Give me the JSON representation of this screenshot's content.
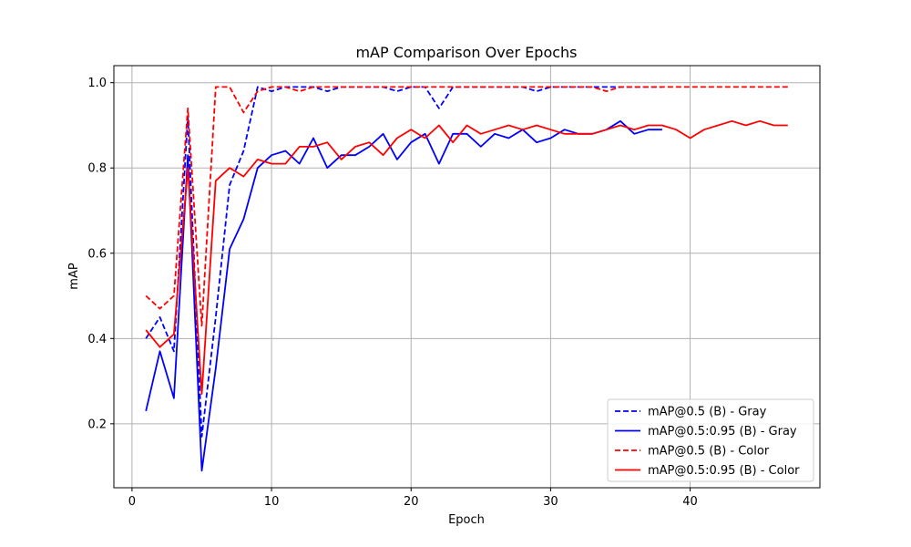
{
  "chart_data": {
    "type": "line",
    "title": "mAP Comparison Over Epochs",
    "xlabel": "Epoch",
    "ylabel": "mAP",
    "xlim": [
      -1.3,
      49.3
    ],
    "ylim": [
      0.05,
      1.04
    ],
    "xticks": [
      0,
      10,
      20,
      30,
      40
    ],
    "yticks": [
      0.2,
      0.4,
      0.6,
      0.8,
      1.0
    ],
    "xtick_labels": [
      "0",
      "10",
      "20",
      "30",
      "40"
    ],
    "ytick_labels": [
      "0.2",
      "0.4",
      "0.6",
      "0.8",
      "1.0"
    ],
    "grid": true,
    "legend_position": "lower-right",
    "series": [
      {
        "name": "mAP@0.5 (B) - Gray",
        "color": "#0000ff",
        "style": "dashed",
        "x": [
          1,
          2,
          3,
          4,
          5,
          6,
          7,
          8,
          9,
          10,
          11,
          12,
          13,
          14,
          15,
          16,
          17,
          18,
          19,
          20,
          21,
          22,
          23,
          24,
          25,
          26,
          27,
          28,
          29,
          30,
          31,
          32,
          33,
          34,
          35,
          36,
          37,
          38
        ],
        "values": [
          0.4,
          0.45,
          0.37,
          0.92,
          0.17,
          0.45,
          0.76,
          0.84,
          0.99,
          0.98,
          0.99,
          0.99,
          0.99,
          0.98,
          0.99,
          0.99,
          0.99,
          0.99,
          0.98,
          0.99,
          0.99,
          0.94,
          0.99,
          0.99,
          0.99,
          0.99,
          0.99,
          0.99,
          0.98,
          0.99,
          0.99,
          0.99,
          0.99,
          0.99,
          0.99,
          0.99,
          0.99,
          0.99
        ]
      },
      {
        "name": "mAP@0.5:0.95 (B) - Gray",
        "color": "#0000ff",
        "style": "solid",
        "x": [
          1,
          2,
          3,
          4,
          5,
          6,
          7,
          8,
          9,
          10,
          11,
          12,
          13,
          14,
          15,
          16,
          17,
          18,
          19,
          20,
          21,
          22,
          23,
          24,
          25,
          26,
          27,
          28,
          29,
          30,
          31,
          32,
          33,
          34,
          35,
          36,
          37,
          38
        ],
        "values": [
          0.23,
          0.37,
          0.26,
          0.83,
          0.09,
          0.33,
          0.61,
          0.68,
          0.8,
          0.83,
          0.84,
          0.81,
          0.87,
          0.8,
          0.83,
          0.83,
          0.85,
          0.88,
          0.82,
          0.86,
          0.88,
          0.81,
          0.88,
          0.88,
          0.85,
          0.88,
          0.87,
          0.89,
          0.86,
          0.87,
          0.89,
          0.88,
          0.88,
          0.89,
          0.91,
          0.88,
          0.89,
          0.89
        ]
      },
      {
        "name": "mAP@0.5 (B) - Color",
        "color": "#ff0000",
        "style": "dashed",
        "x": [
          1,
          2,
          3,
          4,
          5,
          6,
          7,
          8,
          9,
          10,
          11,
          12,
          13,
          14,
          15,
          16,
          17,
          18,
          19,
          20,
          21,
          22,
          23,
          24,
          25,
          26,
          27,
          28,
          29,
          30,
          31,
          32,
          33,
          34,
          35,
          36,
          37,
          38,
          39,
          40,
          41,
          42,
          43,
          44,
          45,
          46,
          47
        ],
        "values": [
          0.5,
          0.47,
          0.5,
          0.94,
          0.43,
          0.99,
          0.99,
          0.93,
          0.98,
          0.99,
          0.99,
          0.98,
          0.99,
          0.99,
          0.99,
          0.99,
          0.99,
          0.99,
          0.99,
          0.99,
          0.99,
          0.99,
          0.99,
          0.99,
          0.99,
          0.99,
          0.99,
          0.99,
          0.99,
          0.99,
          0.99,
          0.99,
          0.99,
          0.98,
          0.99,
          0.99,
          0.99,
          0.99,
          0.99,
          0.99,
          0.99,
          0.99,
          0.99,
          0.99,
          0.99,
          0.99,
          0.99
        ]
      },
      {
        "name": "mAP@0.5:0.95 (B) - Color",
        "color": "#ff0000",
        "style": "solid",
        "x": [
          1,
          2,
          3,
          4,
          5,
          6,
          7,
          8,
          9,
          10,
          11,
          12,
          13,
          14,
          15,
          16,
          17,
          18,
          19,
          20,
          21,
          22,
          23,
          24,
          25,
          26,
          27,
          28,
          29,
          30,
          31,
          32,
          33,
          34,
          35,
          36,
          37,
          38,
          39,
          40,
          41,
          42,
          43,
          44,
          45,
          46,
          47
        ],
        "values": [
          0.42,
          0.38,
          0.41,
          0.8,
          0.27,
          0.77,
          0.8,
          0.78,
          0.82,
          0.81,
          0.81,
          0.85,
          0.85,
          0.86,
          0.82,
          0.85,
          0.86,
          0.83,
          0.87,
          0.89,
          0.87,
          0.9,
          0.86,
          0.9,
          0.88,
          0.89,
          0.9,
          0.89,
          0.9,
          0.89,
          0.88,
          0.88,
          0.88,
          0.89,
          0.9,
          0.89,
          0.9,
          0.9,
          0.89,
          0.87,
          0.89,
          0.9,
          0.91,
          0.9,
          0.91,
          0.9,
          0.9
        ]
      }
    ]
  }
}
